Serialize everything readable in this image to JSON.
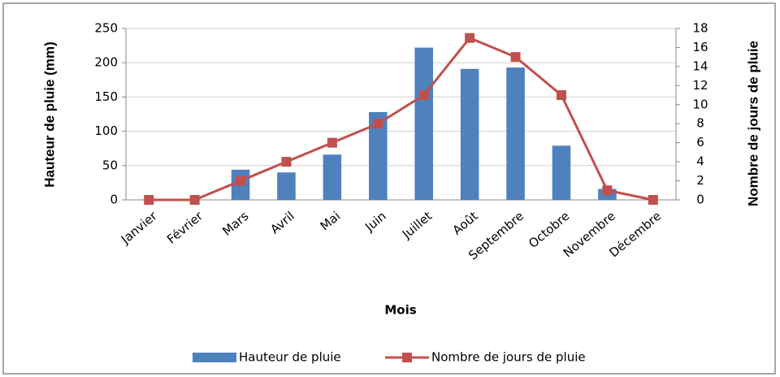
{
  "chart_data": {
    "type": "bar",
    "categories": [
      "Janvier",
      "Février",
      "Mars",
      "Avril",
      "Mai",
      "Juin",
      "Juillet",
      "Août",
      "Septembre",
      "Octobre",
      "Novembre",
      "Décembre"
    ],
    "series": [
      {
        "name": "Hauteur de pluie",
        "type": "bar",
        "color": "#4f81bd",
        "values": [
          0,
          0,
          44,
          40,
          66,
          128,
          222,
          191,
          193,
          79,
          16,
          0
        ]
      },
      {
        "name": "Nombre de jours de pluie",
        "type": "line",
        "axis": "y2",
        "color": "#c0504d",
        "values": [
          0,
          0,
          2,
          4,
          6,
          8,
          11,
          17,
          15,
          11,
          1,
          0
        ]
      }
    ],
    "xlabel": "Mois",
    "ylabel": "Hauteur de pluie (mm)",
    "y2label": "Nombre de jours de pluie",
    "ylim": [
      0,
      250
    ],
    "yticks": [
      0,
      50,
      100,
      150,
      200,
      250
    ],
    "y2lim": [
      0,
      18
    ],
    "y2ticks": [
      0,
      2,
      4,
      6,
      8,
      10,
      12,
      14,
      16,
      18
    ],
    "grid": true,
    "legend": "bottom"
  }
}
